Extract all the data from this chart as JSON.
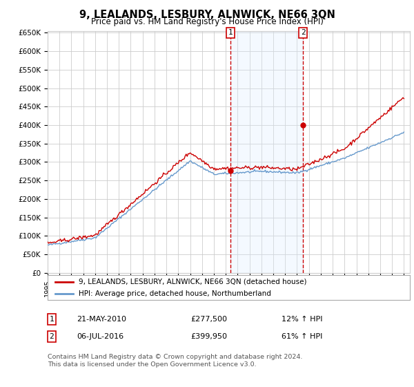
{
  "title": "9, LEALANDS, LESBURY, ALNWICK, NE66 3QN",
  "subtitle": "Price paid vs. HM Land Registry's House Price Index (HPI)",
  "x_start_year": 1995,
  "x_end_year": 2025,
  "y_min": 0,
  "y_max": 650000,
  "y_ticks": [
    0,
    50000,
    100000,
    150000,
    200000,
    250000,
    300000,
    350000,
    400000,
    450000,
    500000,
    550000,
    600000,
    650000
  ],
  "y_tick_labels": [
    "£0",
    "£50K",
    "£100K",
    "£150K",
    "£200K",
    "£250K",
    "£300K",
    "£350K",
    "£400K",
    "£450K",
    "£500K",
    "£550K",
    "£600K",
    "£650K"
  ],
  "sale1_date": 2010.38,
  "sale1_price": 277500,
  "sale1_label": "1",
  "sale1_text": "21-MAY-2010",
  "sale1_amount": "£277,500",
  "sale1_hpi": "12% ↑ HPI",
  "sale2_date": 2016.51,
  "sale2_price": 399950,
  "sale2_label": "2",
  "sale2_text": "06-JUL-2016",
  "sale2_amount": "£399,950",
  "sale2_hpi": "61% ↑ HPI",
  "legend_entry1": "9, LEALANDS, LESBURY, ALNWICK, NE66 3QN (detached house)",
  "legend_entry2": "HPI: Average price, detached house, Northumberland",
  "footnote": "Contains HM Land Registry data © Crown copyright and database right 2024.\nThis data is licensed under the Open Government Licence v3.0.",
  "line_color_red": "#cc0000",
  "line_color_blue": "#6699cc",
  "shading_color": "#ddeeff",
  "vline_color": "#cc0000",
  "grid_color": "#cccccc",
  "background_color": "#ffffff",
  "box_color": "#cc0000"
}
